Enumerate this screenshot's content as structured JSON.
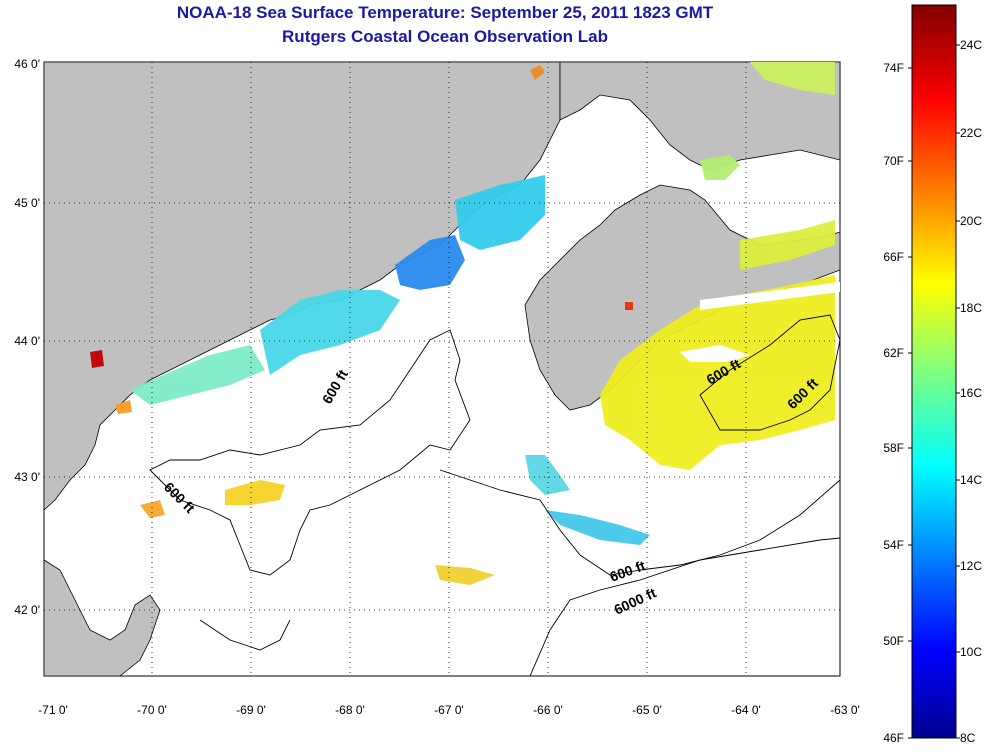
{
  "title": {
    "line1": "NOAA-18 Sea Surface Temperature:  September 25, 2011 1823 GMT",
    "line2": "Rutgers Coastal Ocean Observation Lab"
  },
  "axes": {
    "latitude_ticks": [
      "46 0'",
      "45 0'",
      "44 0'",
      "43 0'",
      "42 0'"
    ],
    "longitude_ticks": [
      "-71 0'",
      "-70 0'",
      "-69 0'",
      "-68 0'",
      "-67 0'",
      "-66 0'",
      "-65 0'",
      "-64 0'",
      "-63 0'"
    ]
  },
  "contour_labels": [
    "600 ft",
    "600 ft",
    "600 ft",
    "600 ft",
    "600 ft",
    "6000 ft"
  ],
  "colorbar": {
    "fahrenheit_ticks": [
      "74F",
      "70F",
      "66F",
      "62F",
      "58F",
      "54F",
      "50F",
      "46F"
    ],
    "celsius_ticks": [
      "24C",
      "22C",
      "20C",
      "18C",
      "16C",
      "14C",
      "12C",
      "10C",
      "8C"
    ],
    "range_celsius": [
      8,
      25
    ],
    "colormap": "jet"
  },
  "colors": {
    "land": "#c0c0c0",
    "ocean_no_data": "#ffffff",
    "title": "#1a1aa6"
  }
}
